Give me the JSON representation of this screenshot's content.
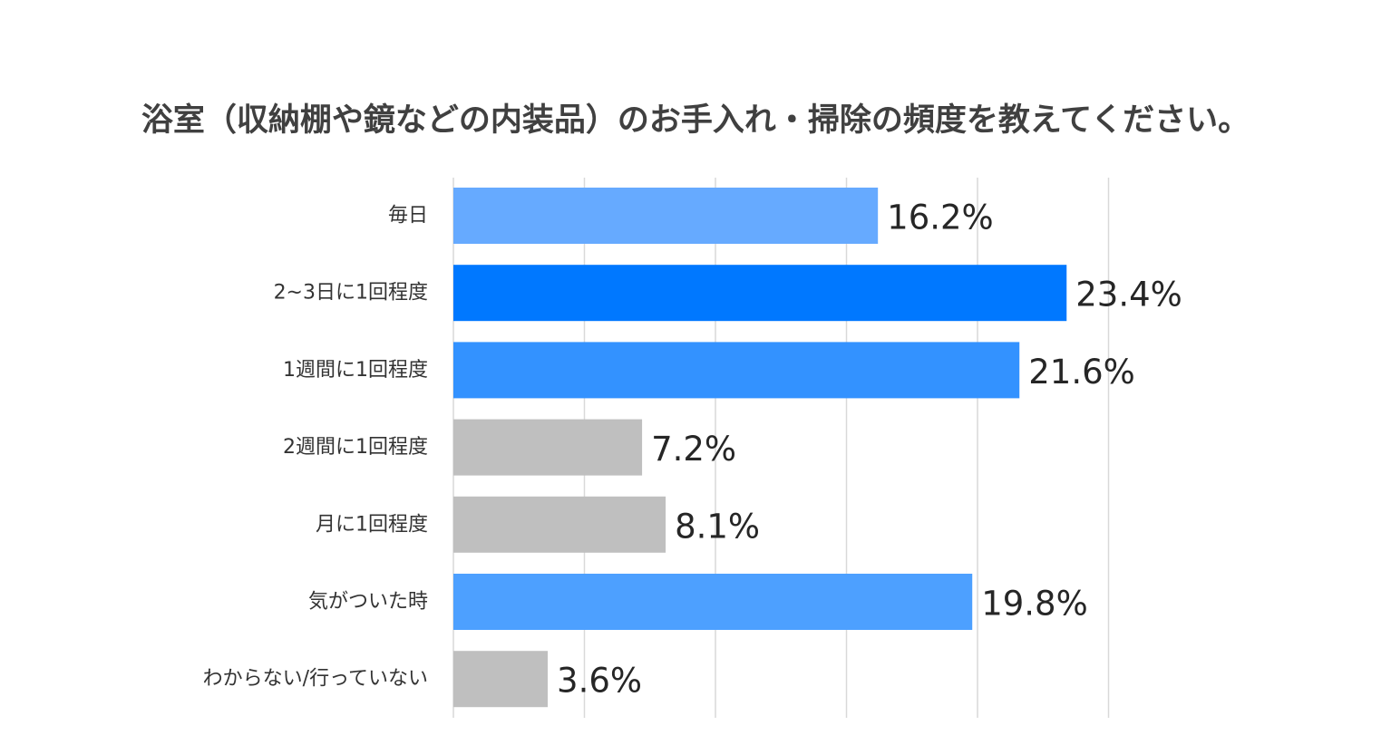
{
  "chart_data": {
    "type": "bar",
    "orientation": "horizontal",
    "title": "浴室（収納棚や鏡などの内装品）のお手入れ・掃除の頻度を教えてください。",
    "categories": [
      "毎日",
      "2~3日に1回程度",
      "1週間に1回程度",
      "2週間に1回程度",
      "月に1回程度",
      "気がついた時",
      "わからない/行っていない"
    ],
    "values": [
      16.2,
      23.4,
      21.6,
      7.2,
      8.1,
      19.8,
      3.6
    ],
    "value_labels": [
      "16.2%",
      "23.4%",
      "21.6%",
      "7.2%",
      "8.1%",
      "19.8%",
      "3.6%"
    ],
    "colors": [
      "#66aaff",
      "#0078ff",
      "#3392ff",
      "#bfbfbf",
      "#bfbfbf",
      "#4da0ff",
      "#bfbfbf"
    ],
    "xlim": [
      0,
      25
    ],
    "grid": true
  }
}
